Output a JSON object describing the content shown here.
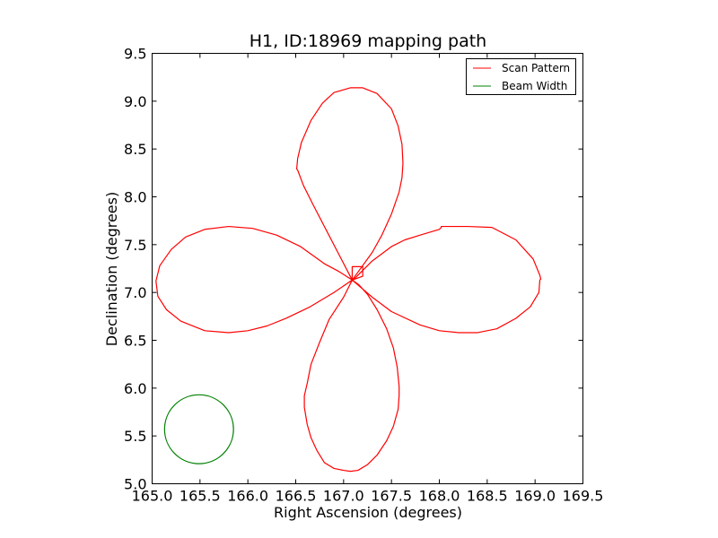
{
  "chart_data": {
    "type": "line",
    "title": "H1, ID:18969 mapping path",
    "xlabel": "Right Ascension (degrees)",
    "ylabel": "Declination (degrees)",
    "xlim": [
      165.0,
      169.5
    ],
    "ylim": [
      5.0,
      9.5
    ],
    "xticks": [
      "165.0",
      "165.5",
      "166.0",
      "166.5",
      "167.0",
      "167.5",
      "168.0",
      "168.5",
      "169.0",
      "169.5"
    ],
    "yticks": [
      "5.0",
      "5.5",
      "6.0",
      "6.5",
      "7.0",
      "7.5",
      "8.0",
      "8.5",
      "9.0",
      "9.5"
    ],
    "xtick_values": [
      165.0,
      165.5,
      166.0,
      166.5,
      167.0,
      167.5,
      168.0,
      168.5,
      169.0,
      169.5
    ],
    "ytick_values": [
      5.0,
      5.5,
      6.0,
      6.5,
      7.0,
      7.5,
      8.0,
      8.5,
      9.0,
      9.5
    ],
    "grid": false,
    "legend_position": "top-right",
    "series": [
      {
        "name": "Scan Pattern",
        "color": "#ff0000",
        "x": [
          167.08,
          167.09,
          167.1,
          167.3,
          167.5,
          167.64,
          167.8,
          168.0,
          168.02,
          168.02,
          168.3,
          168.55,
          168.8,
          168.98,
          169.05,
          169.06,
          169.05,
          169.04,
          168.95,
          168.8,
          168.6,
          168.4,
          168.2,
          168.0,
          167.8,
          167.5,
          167.3,
          167.09,
          167.3,
          167.4,
          167.5,
          167.58,
          167.61,
          167.62,
          167.61,
          167.57,
          167.5,
          167.35,
          167.2,
          167.07,
          166.9,
          166.78,
          166.66,
          166.56,
          166.52,
          166.51,
          166.52,
          166.58,
          166.68,
          166.82,
          166.96,
          167.09,
          166.9,
          166.65,
          166.4,
          166.2,
          166.0,
          165.8,
          165.55,
          165.3,
          165.15,
          165.06,
          165.04,
          165.08,
          165.2,
          165.35,
          165.55,
          165.8,
          166.05,
          166.3,
          166.55,
          166.8,
          166.95,
          167.09,
          167.0,
          166.85,
          166.75,
          166.66,
          166.62,
          166.59,
          166.59,
          166.62,
          166.66,
          166.72,
          166.8,
          166.9,
          167.0,
          167.07,
          167.15,
          167.25,
          167.35,
          167.45,
          167.52,
          167.57,
          167.58,
          167.58,
          167.56,
          167.52,
          167.45,
          167.35,
          167.25,
          167.16,
          167.09,
          167.09,
          167.2,
          167.2,
          167.09
        ],
        "y": [
          7.12,
          7.12,
          7.13,
          7.33,
          7.48,
          7.55,
          7.6,
          7.66,
          7.68,
          7.69,
          7.69,
          7.68,
          7.55,
          7.35,
          7.18,
          7.14,
          7.13,
          7.0,
          6.85,
          6.73,
          6.62,
          6.58,
          6.58,
          6.6,
          6.66,
          6.8,
          6.95,
          7.13,
          7.42,
          7.6,
          7.82,
          8.05,
          8.2,
          8.35,
          8.55,
          8.74,
          8.92,
          9.08,
          9.14,
          9.14,
          9.09,
          8.98,
          8.8,
          8.57,
          8.4,
          8.29,
          8.28,
          8.12,
          7.92,
          7.65,
          7.38,
          7.13,
          7.0,
          6.85,
          6.73,
          6.65,
          6.6,
          6.58,
          6.6,
          6.7,
          6.82,
          6.96,
          7.12,
          7.28,
          7.45,
          7.58,
          7.66,
          7.69,
          7.67,
          7.6,
          7.48,
          7.3,
          7.22,
          7.13,
          6.95,
          6.72,
          6.48,
          6.25,
          6.05,
          5.92,
          5.8,
          5.62,
          5.48,
          5.35,
          5.22,
          5.16,
          5.14,
          5.13,
          5.14,
          5.2,
          5.3,
          5.45,
          5.6,
          5.78,
          5.92,
          6.02,
          6.22,
          6.42,
          6.62,
          6.82,
          6.98,
          7.08,
          7.13,
          7.27,
          7.27,
          7.17,
          7.13
        ]
      }
    ],
    "beam": {
      "name": "Beam Width",
      "color": "#008000",
      "center_x": 165.49,
      "center_y": 5.57,
      "radius": 0.36
    }
  }
}
